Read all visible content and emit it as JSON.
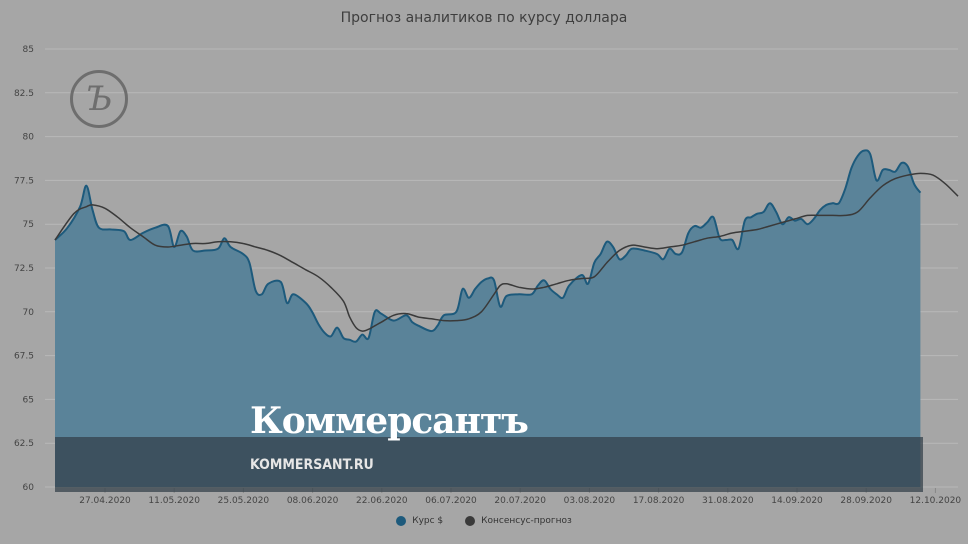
{
  "chart_data": {
    "type": "area",
    "title": "Прогноз аналитиков по курсу доллара",
    "xlabel": "",
    "ylabel": "",
    "ylim": [
      60,
      85
    ],
    "yticks": [
      "85",
      "82.5",
      "80",
      "77.5",
      "75",
      "72.5",
      "70",
      "67.5",
      "65",
      "62.5",
      "60"
    ],
    "xticks": [
      "27.04.2020",
      "11.05.2020",
      "25.05.2020",
      "08.06.2020",
      "22.06.2020",
      "06.07.2020",
      "20.07.2020",
      "03.08.2020",
      "17.08.2020",
      "31.08.2020",
      "14.09.2020",
      "28.09.2020",
      "12.10.2020"
    ],
    "grid": true,
    "legend_position": "bottom",
    "series": [
      {
        "name": "Курс $",
        "color": "#1d5a7c",
        "style": "area",
        "points": [
          [
            0,
            74.1
          ],
          [
            2,
            74.8
          ],
          [
            4,
            76.0
          ],
          [
            5,
            77.2
          ],
          [
            6,
            75.8
          ],
          [
            7,
            74.8
          ],
          [
            9,
            74.7
          ],
          [
            11,
            74.6
          ],
          [
            12,
            74.1
          ],
          [
            14,
            74.5
          ],
          [
            16,
            74.8
          ],
          [
            18,
            74.9
          ],
          [
            19,
            73.7
          ],
          [
            20,
            74.6
          ],
          [
            21,
            74.3
          ],
          [
            22,
            73.5
          ],
          [
            24,
            73.5
          ],
          [
            26,
            73.6
          ],
          [
            27,
            74.2
          ],
          [
            28,
            73.7
          ],
          [
            30,
            73.3
          ],
          [
            31,
            72.8
          ],
          [
            32,
            71.2
          ],
          [
            33,
            71.0
          ],
          [
            34,
            71.6
          ],
          [
            36,
            71.7
          ],
          [
            37,
            70.5
          ],
          [
            38,
            71.0
          ],
          [
            40,
            70.5
          ],
          [
            41,
            70.0
          ],
          [
            42,
            69.3
          ],
          [
            43,
            68.8
          ],
          [
            44,
            68.6
          ],
          [
            45,
            69.1
          ],
          [
            46,
            68.5
          ],
          [
            47,
            68.4
          ],
          [
            48,
            68.3
          ],
          [
            49,
            68.7
          ],
          [
            50,
            68.5
          ],
          [
            51,
            70.0
          ],
          [
            52,
            69.9
          ],
          [
            54,
            69.5
          ],
          [
            56,
            69.8
          ],
          [
            57,
            69.4
          ],
          [
            58,
            69.2
          ],
          [
            60,
            68.9
          ],
          [
            61,
            69.2
          ],
          [
            62,
            69.8
          ],
          [
            64,
            70.0
          ],
          [
            65,
            71.3
          ],
          [
            66,
            70.8
          ],
          [
            67,
            71.3
          ],
          [
            68,
            71.7
          ],
          [
            69,
            71.9
          ],
          [
            70,
            71.8
          ],
          [
            71,
            70.3
          ],
          [
            72,
            70.9
          ],
          [
            74,
            71.0
          ],
          [
            76,
            71.0
          ],
          [
            77,
            71.5
          ],
          [
            78,
            71.8
          ],
          [
            79,
            71.3
          ],
          [
            80,
            71.0
          ],
          [
            81,
            70.8
          ],
          [
            82,
            71.5
          ],
          [
            84,
            72.1
          ],
          [
            85,
            71.6
          ],
          [
            86,
            72.8
          ],
          [
            87,
            73.3
          ],
          [
            88,
            74.0
          ],
          [
            89,
            73.7
          ],
          [
            90,
            73.0
          ],
          [
            91,
            73.2
          ],
          [
            92,
            73.6
          ],
          [
            94,
            73.5
          ],
          [
            96,
            73.3
          ],
          [
            97,
            73.0
          ],
          [
            98,
            73.6
          ],
          [
            99,
            73.3
          ],
          [
            100,
            73.4
          ],
          [
            101,
            74.5
          ],
          [
            102,
            74.9
          ],
          [
            103,
            74.8
          ],
          [
            104,
            75.1
          ],
          [
            105,
            75.4
          ],
          [
            106,
            74.2
          ],
          [
            107,
            74.1
          ],
          [
            108,
            74.1
          ],
          [
            109,
            73.6
          ],
          [
            110,
            75.2
          ],
          [
            111,
            75.4
          ],
          [
            112,
            75.6
          ],
          [
            113,
            75.7
          ],
          [
            114,
            76.2
          ],
          [
            115,
            75.7
          ],
          [
            116,
            75.0
          ],
          [
            117,
            75.4
          ],
          [
            118,
            75.2
          ],
          [
            119,
            75.3
          ],
          [
            120,
            75.0
          ],
          [
            121,
            75.3
          ],
          [
            122,
            75.8
          ],
          [
            123,
            76.1
          ],
          [
            124,
            76.2
          ],
          [
            125,
            76.2
          ],
          [
            126,
            77.0
          ],
          [
            127,
            78.2
          ],
          [
            128,
            78.9
          ],
          [
            129,
            79.2
          ],
          [
            130,
            79.0
          ],
          [
            131,
            77.5
          ],
          [
            132,
            78.1
          ],
          [
            133,
            78.1
          ],
          [
            134,
            78.0
          ],
          [
            135,
            78.5
          ],
          [
            136,
            78.3
          ],
          [
            137,
            77.3
          ],
          [
            138,
            76.8
          ]
        ]
      },
      {
        "name": "Консенсус-прогноз",
        "color": "#3a3a3a",
        "style": "line",
        "points": [
          [
            0,
            74.1
          ],
          [
            3,
            75.6
          ],
          [
            5,
            76.0
          ],
          [
            6,
            76.1
          ],
          [
            8,
            75.9
          ],
          [
            10,
            75.4
          ],
          [
            12,
            74.8
          ],
          [
            14,
            74.3
          ],
          [
            16,
            73.8
          ],
          [
            18,
            73.7
          ],
          [
            20,
            73.8
          ],
          [
            22,
            73.9
          ],
          [
            24,
            73.9
          ],
          [
            26,
            74.0
          ],
          [
            28,
            74.0
          ],
          [
            30,
            73.9
          ],
          [
            32,
            73.7
          ],
          [
            34,
            73.5
          ],
          [
            36,
            73.2
          ],
          [
            38,
            72.8
          ],
          [
            40,
            72.4
          ],
          [
            42,
            72.0
          ],
          [
            44,
            71.4
          ],
          [
            46,
            70.6
          ],
          [
            47,
            69.7
          ],
          [
            48,
            69.1
          ],
          [
            49,
            68.9
          ],
          [
            50,
            69.0
          ],
          [
            51,
            69.2
          ],
          [
            52,
            69.4
          ],
          [
            54,
            69.8
          ],
          [
            56,
            69.9
          ],
          [
            58,
            69.7
          ],
          [
            60,
            69.6
          ],
          [
            62,
            69.5
          ],
          [
            64,
            69.5
          ],
          [
            66,
            69.6
          ],
          [
            68,
            70.0
          ],
          [
            70,
            71.0
          ],
          [
            71,
            71.5
          ],
          [
            72,
            71.6
          ],
          [
            74,
            71.4
          ],
          [
            76,
            71.3
          ],
          [
            78,
            71.4
          ],
          [
            80,
            71.6
          ],
          [
            82,
            71.8
          ],
          [
            84,
            71.9
          ],
          [
            86,
            72.0
          ],
          [
            88,
            72.8
          ],
          [
            90,
            73.5
          ],
          [
            92,
            73.8
          ],
          [
            94,
            73.7
          ],
          [
            96,
            73.6
          ],
          [
            98,
            73.7
          ],
          [
            100,
            73.8
          ],
          [
            102,
            74.0
          ],
          [
            104,
            74.2
          ],
          [
            106,
            74.3
          ],
          [
            108,
            74.5
          ],
          [
            110,
            74.6
          ],
          [
            112,
            74.7
          ],
          [
            114,
            74.9
          ],
          [
            116,
            75.1
          ],
          [
            118,
            75.3
          ],
          [
            120,
            75.5
          ],
          [
            122,
            75.5
          ],
          [
            124,
            75.5
          ],
          [
            126,
            75.5
          ],
          [
            128,
            75.7
          ],
          [
            130,
            76.5
          ],
          [
            132,
            77.2
          ],
          [
            134,
            77.6
          ],
          [
            136,
            77.8
          ],
          [
            138,
            77.9
          ],
          [
            140,
            77.8
          ],
          [
            142,
            77.3
          ],
          [
            144,
            76.6
          ]
        ]
      }
    ]
  },
  "watermark": {
    "brand": "Коммерсантъ",
    "url": "KOMMERSANT.RU",
    "logo_glyph": "Ъ"
  },
  "colors": {
    "background": "#a6a6a6",
    "area_fill": "#5a8399",
    "area_stroke": "#1d5a7c",
    "consensus_line": "#3a3a3a",
    "grid": "#b8b8b8"
  }
}
